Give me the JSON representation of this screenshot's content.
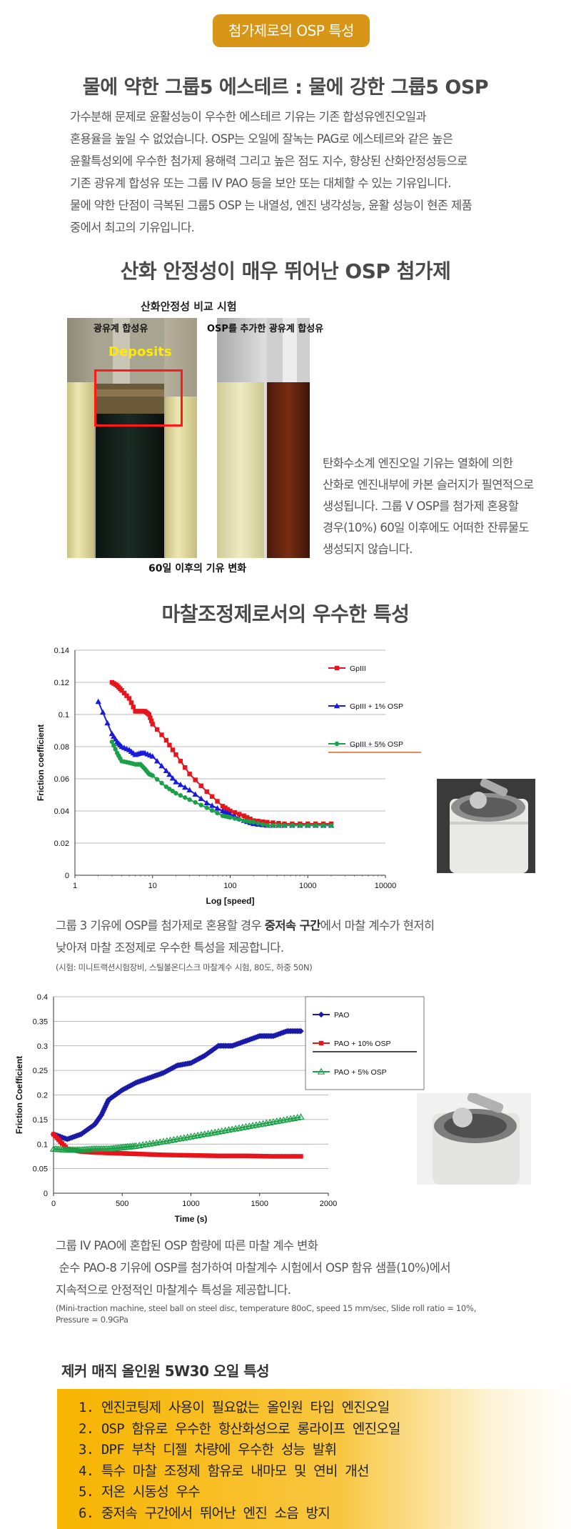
{
  "badge": "첨가제로의 OSP 특성",
  "section1": {
    "title": "물에 약한 그룹5 에스테르 : 물에 강한 그룹5 OSP",
    "lines": [
      "가수분해 문제로 윤활성능이 우수한 에스테르 기유는 기존 합성유엔진오일과",
      "혼용율을 높일 수 없었습니다. OSP는 오일에 잘녹는 PAG로 에스테르와 같은 높은",
      "윤활특성외에 우수한 첨가제 용해력 그리고 높은 점도 지수, 향상된 산화안정성등으로",
      "기존 광유계 합성유 또는 그룹 IV PAO 등을 보안 또는 대체할 수 있는 기유입니다.",
      "물에 약한 단점이 극복된 그룹5 OSP 는 내열성, 엔진 냉각성능, 윤활 성능이 현존 제품",
      "중에서 최고의 기유입니다."
    ]
  },
  "section2": {
    "title": "산화 안정성이 매우 뛰어난 OSP 첨가제",
    "photo_title": "산화안정성 비교 시험",
    "left_label": "광유계 합성유",
    "right_label": "OSP를 추가한 광유계 합성유",
    "deposits_label": "Deposits",
    "bottom_caption": "60일 이후의 기유 변화",
    "side_text": [
      "탄화수소계 엔진오일 기유는 열화에 의한",
      "산화로 엔진내부에 카본 슬러지가 필연적으로",
      "생성됩니다. 그룹 V OSP를 첨가제 혼용할",
      "경우(10%) 60일 이후에도 어떠한 잔류물도",
      "생성되지 않습니다."
    ]
  },
  "section3": {
    "title": "마찰조정제로서의 우수한 특성",
    "desc_line1_pre": "그룹 3 기유에 OSP를 첨가제로 혼용할 경우 ",
    "desc_line1_bold": "중저속 구간",
    "desc_line1_post": "에서 마찰 계수가 현저히",
    "desc_line2": "낮아져 마찰 조정제로 우수한 특성을 제공합니다.",
    "note": "(시험: 미니트랙션시험장비, 스틸볼온디스크 마찰계수 시험, 80도, 하중 50N)",
    "desc2_lines": [
      "그룹 IV PAO에 혼합된 OSP 함량에 따른 마찰 계수 변화",
      " 순수 PAO-8 기유에 OSP를 첨가하여 마찰계수 시험에서 OSP 함유 샘플(10%)에서",
      "지속적으로 안정적인 마찰계수 특성을 제공합니다."
    ],
    "note2_lines": [
      "(Mini-traction machine, steel ball on steel disc, temperature 80oC, speed 15 mm/sec, Slide roll ratio = 10%,",
      "Pressure = 0.9GPa"
    ]
  },
  "chart_data": [
    {
      "type": "line",
      "title": "",
      "xlabel": "Log [speed]",
      "ylabel": "Friction coefficient",
      "xscale": "log",
      "xlim": [
        1,
        10000
      ],
      "ylim": [
        0,
        0.14
      ],
      "xticks": [
        "1",
        "10",
        "100",
        "1000",
        "10000"
      ],
      "yticks": [
        "0",
        "0.02",
        "0.04",
        "0.06",
        "0.08",
        "0.1",
        "0.12",
        "0.14"
      ],
      "grid": "horizontal",
      "legend": "right",
      "series": [
        {
          "name": "GpIII",
          "color": "#e8141b",
          "marker": "square",
          "x": [
            3,
            3.5,
            4,
            5,
            6,
            7,
            8,
            9,
            10,
            15,
            20,
            30,
            50,
            80,
            100,
            150,
            200,
            300,
            500,
            1000,
            2000
          ],
          "y": [
            0.12,
            0.118,
            0.115,
            0.11,
            0.102,
            0.102,
            0.102,
            0.1,
            0.094,
            0.084,
            0.075,
            0.063,
            0.052,
            0.043,
            0.04,
            0.037,
            0.034,
            0.033,
            0.032,
            0.032,
            0.032
          ]
        },
        {
          "name": "GpIII + 1% OSP",
          "color": "#1a1adc",
          "marker": "triangle",
          "x": [
            2,
            3,
            3.5,
            4,
            5,
            6,
            7,
            8,
            10,
            15,
            20,
            30,
            50,
            80,
            100,
            150,
            200,
            300,
            500,
            1000,
            2000
          ],
          "y": [
            0.108,
            0.088,
            0.083,
            0.08,
            0.078,
            0.075,
            0.076,
            0.076,
            0.074,
            0.065,
            0.058,
            0.053,
            0.045,
            0.04,
            0.038,
            0.034,
            0.032,
            0.031,
            0.031,
            0.031,
            0.031
          ]
        },
        {
          "name": "GpIII + 5% OSP",
          "color": "#1aa046",
          "marker": "circle",
          "x": [
            3,
            3.5,
            4,
            5,
            6,
            7,
            8,
            9,
            10,
            15,
            20,
            30,
            50,
            80,
            100,
            150,
            200,
            300,
            500,
            1000,
            2000
          ],
          "y": [
            0.083,
            0.076,
            0.071,
            0.07,
            0.069,
            0.069,
            0.066,
            0.063,
            0.062,
            0.055,
            0.051,
            0.047,
            0.042,
            0.037,
            0.036,
            0.034,
            0.033,
            0.031,
            0.031,
            0.031,
            0.031
          ]
        }
      ]
    },
    {
      "type": "line",
      "title": "",
      "xlabel": "Time (s)",
      "ylabel": "Friction Coefficient",
      "xlim": [
        0,
        2000
      ],
      "ylim": [
        0,
        0.4
      ],
      "xticks": [
        "0",
        "500",
        "1000",
        "1500",
        "2000"
      ],
      "yticks": [
        "0",
        "0.05",
        "0.1",
        "0.15",
        "0.2",
        "0.25",
        "0.3",
        "0.35",
        "0.4"
      ],
      "grid": "horizontal",
      "legend": "right",
      "series": [
        {
          "name": "PAO",
          "color": "#1a1aa8",
          "marker": "diamond",
          "x": [
            0,
            100,
            200,
            300,
            350,
            400,
            500,
            600,
            700,
            800,
            900,
            1000,
            1100,
            1200,
            1300,
            1400,
            1500,
            1600,
            1700,
            1800
          ],
          "y": [
            0.12,
            0.11,
            0.12,
            0.14,
            0.16,
            0.19,
            0.21,
            0.225,
            0.235,
            0.245,
            0.26,
            0.265,
            0.28,
            0.3,
            0.3,
            0.31,
            0.32,
            0.32,
            0.33,
            0.33
          ]
        },
        {
          "name": "PAO + 10% OSP",
          "color": "#e8141b",
          "marker": "square",
          "x": [
            0,
            100,
            200,
            300,
            400,
            500,
            600,
            800,
            1000,
            1200,
            1400,
            1600,
            1800
          ],
          "y": [
            0.12,
            0.09,
            0.085,
            0.083,
            0.082,
            0.081,
            0.08,
            0.078,
            0.077,
            0.076,
            0.076,
            0.075,
            0.075
          ]
        },
        {
          "name": "PAO + 5% OSP",
          "color": "#1aa046",
          "marker": "triangle-open",
          "x": [
            0,
            100,
            200,
            300,
            400,
            500,
            600,
            800,
            1000,
            1200,
            1400,
            1600,
            1800
          ],
          "y": [
            0.09,
            0.088,
            0.088,
            0.09,
            0.09,
            0.093,
            0.096,
            0.105,
            0.115,
            0.125,
            0.135,
            0.145,
            0.155
          ]
        }
      ]
    }
  ],
  "section4": {
    "title": "제커 매직 올인원 5W30 오일 특성",
    "items": [
      "1. 엔진코팅제 사용이 필요없는 올인원 타입 엔진오일",
      "2. OSP 함유로 우수한 항산화성으로 롱라이프 엔진오일",
      "3. DPF 부착 디젤 차량에 우수한 성능 발휘",
      "4. 특수 마찰 조정제 함유로 내마모 및 연비 개선",
      "5. 저온 시동성 우수",
      "6. 중저속 구간에서 뛰어난 엔진 소음 방지"
    ]
  },
  "colors": {
    "badge": "#d89618",
    "accent_yellow": "#f7b400",
    "deposit_box": "#ff1a1a",
    "deposit_text": "#ffea00"
  }
}
